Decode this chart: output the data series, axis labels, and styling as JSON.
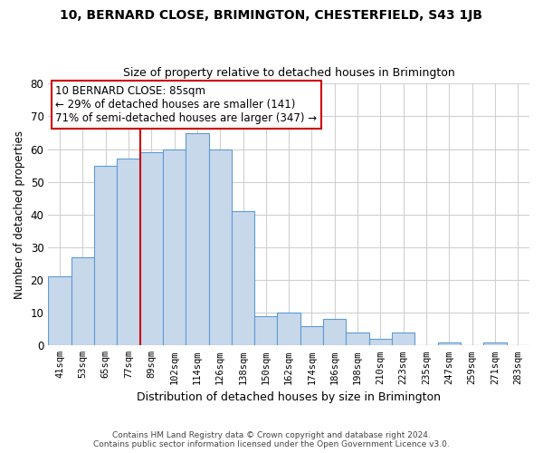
{
  "title1": "10, BERNARD CLOSE, BRIMINGTON, CHESTERFIELD, S43 1JB",
  "title2": "Size of property relative to detached houses in Brimington",
  "xlabel": "Distribution of detached houses by size in Brimington",
  "ylabel": "Number of detached properties",
  "bar_labels": [
    "41sqm",
    "53sqm",
    "65sqm",
    "77sqm",
    "89sqm",
    "102sqm",
    "114sqm",
    "126sqm",
    "138sqm",
    "150sqm",
    "162sqm",
    "174sqm",
    "186sqm",
    "198sqm",
    "210sqm",
    "223sqm",
    "235sqm",
    "247sqm",
    "259sqm",
    "271sqm",
    "283sqm"
  ],
  "bar_values": [
    21,
    27,
    55,
    57,
    59,
    60,
    65,
    60,
    41,
    9,
    10,
    6,
    8,
    4,
    2,
    4,
    0,
    1,
    0,
    1,
    0
  ],
  "bar_color": "#c8d8eb",
  "bar_edge_color": "#5b9bd5",
  "vline_index": 4,
  "vline_color": "#cc0000",
  "ylim": [
    0,
    80
  ],
  "yticks": [
    0,
    10,
    20,
    30,
    40,
    50,
    60,
    70,
    80
  ],
  "annotation_title": "10 BERNARD CLOSE: 85sqm",
  "annotation_line1": "← 29% of detached houses are smaller (141)",
  "annotation_line2": "71% of semi-detached houses are larger (347) →",
  "annotation_box_color": "#ffffff",
  "annotation_box_edge": "#cc0000",
  "footer_line1": "Contains HM Land Registry data © Crown copyright and database right 2024.",
  "footer_line2": "Contains public sector information licensed under the Open Government Licence v3.0.",
  "background_color": "#ffffff",
  "grid_color": "#d0d0d0"
}
